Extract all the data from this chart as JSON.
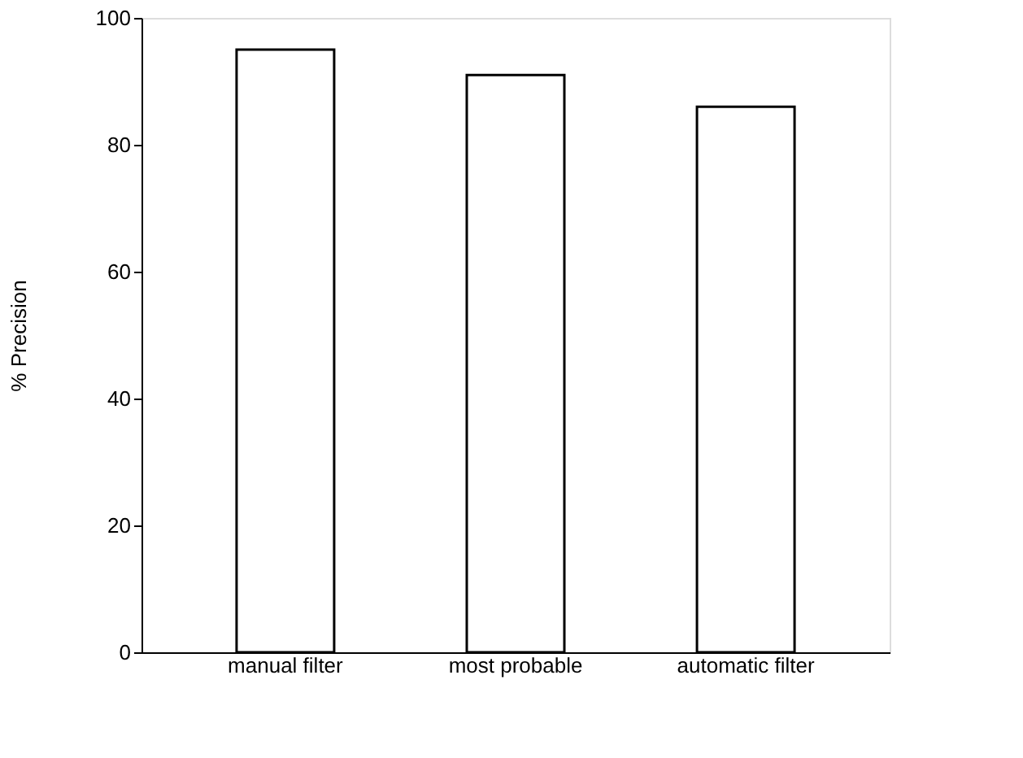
{
  "chart_data": {
    "type": "bar",
    "ylabel": "% Precision",
    "categories": [
      "manual filter",
      "most probable",
      "automatic filter"
    ],
    "values": [
      95,
      91,
      86
    ],
    "color": "#ffffff",
    "ylim": [
      0,
      100
    ],
    "yticks": [
      0,
      20,
      40,
      60,
      80,
      100
    ],
    "grid": false
  }
}
